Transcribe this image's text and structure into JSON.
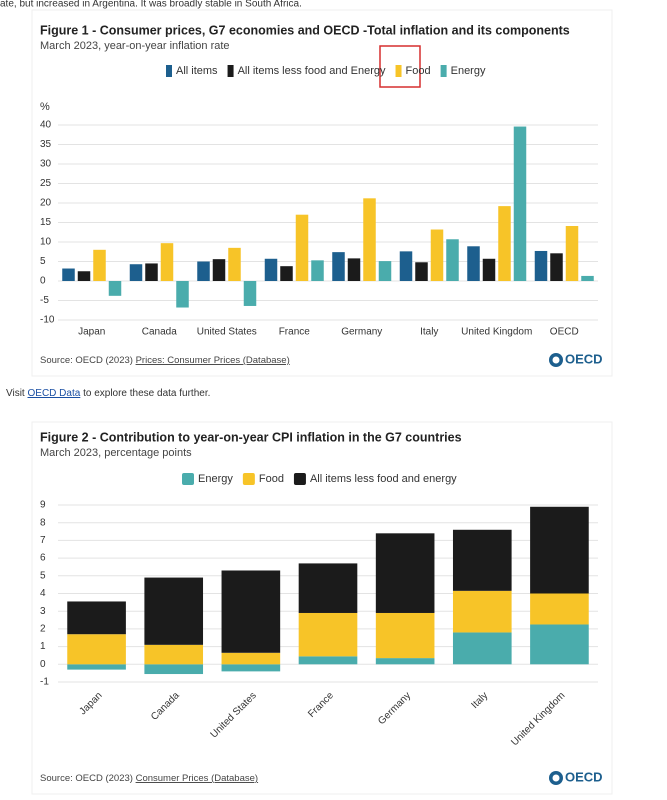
{
  "intro_text": "ate, but increased in Argentina. It was broadly stable in South Africa.",
  "visit": {
    "prefix": "Visit ",
    "link": "OECD Data",
    "suffix": " to explore these data further."
  },
  "chart_data": [
    {
      "type": "bar",
      "title": "Figure 1 - Consumer prices, G7 economies and OECD -Total inflation and its components",
      "subtitle": "March 2023, year-on-year inflation rate",
      "y_label": "%",
      "categories": [
        "Japan",
        "Canada",
        "United States",
        "France",
        "Germany",
        "Italy",
        "United Kingdom",
        "OECD"
      ],
      "series": [
        {
          "name": "All items",
          "color": "#1d5f8e",
          "values": [
            3.2,
            4.3,
            5.0,
            5.7,
            7.4,
            7.6,
            8.9,
            7.7
          ]
        },
        {
          "name": "All items less food and Energy",
          "color": "#1b1b1b",
          "values": [
            2.5,
            4.5,
            5.6,
            3.8,
            5.8,
            4.8,
            5.7,
            7.1
          ]
        },
        {
          "name": "Food",
          "color": "#f7c428",
          "values": [
            8.0,
            9.7,
            8.5,
            17.0,
            21.2,
            13.2,
            19.2,
            14.1
          ]
        },
        {
          "name": "Energy",
          "color": "#4aacac",
          "values": [
            -3.8,
            -6.8,
            -6.4,
            5.3,
            5.1,
            10.7,
            39.6,
            1.3
          ]
        }
      ],
      "ylim": [
        -10,
        40
      ],
      "yticks": [
        -10,
        -5,
        0,
        5,
        10,
        15,
        20,
        25,
        30,
        35,
        40
      ],
      "grid": true,
      "legend": "top",
      "source_prefix": "Source: OECD (2023) ",
      "source_link": "Prices: Consumer Prices (Database)",
      "logo": "OECD"
    },
    {
      "type": "stacked_bar",
      "title": "Figure 2 - Contribution to year-on-year CPI inflation in the G7 countries",
      "subtitle": "March 2023, percentage points",
      "categories": [
        "Japan",
        "Canada",
        "United States",
        "France",
        "Germany",
        "Italy",
        "United Kingdom"
      ],
      "series": [
        {
          "name": "Energy",
          "color": "#4aacac",
          "values": [
            -0.3,
            -0.55,
            -0.4,
            0.45,
            0.35,
            1.8,
            2.25
          ]
        },
        {
          "name": "Food",
          "color": "#f7c428",
          "values": [
            1.7,
            1.1,
            0.65,
            2.45,
            2.55,
            2.35,
            1.75
          ]
        },
        {
          "name": "All items less food and energy",
          "color": "#1b1b1b",
          "values": [
            1.85,
            3.8,
            4.65,
            2.8,
            4.5,
            3.45,
            4.9
          ]
        }
      ],
      "ylim": [
        -1,
        9
      ],
      "yticks": [
        -1,
        0,
        1,
        2,
        3,
        4,
        5,
        6,
        7,
        8,
        9
      ],
      "grid": true,
      "legend": "top",
      "source_prefix": "Source: OECD (2023) ",
      "source_link": "Consumer Prices (Database)",
      "logo": "OECD"
    }
  ]
}
